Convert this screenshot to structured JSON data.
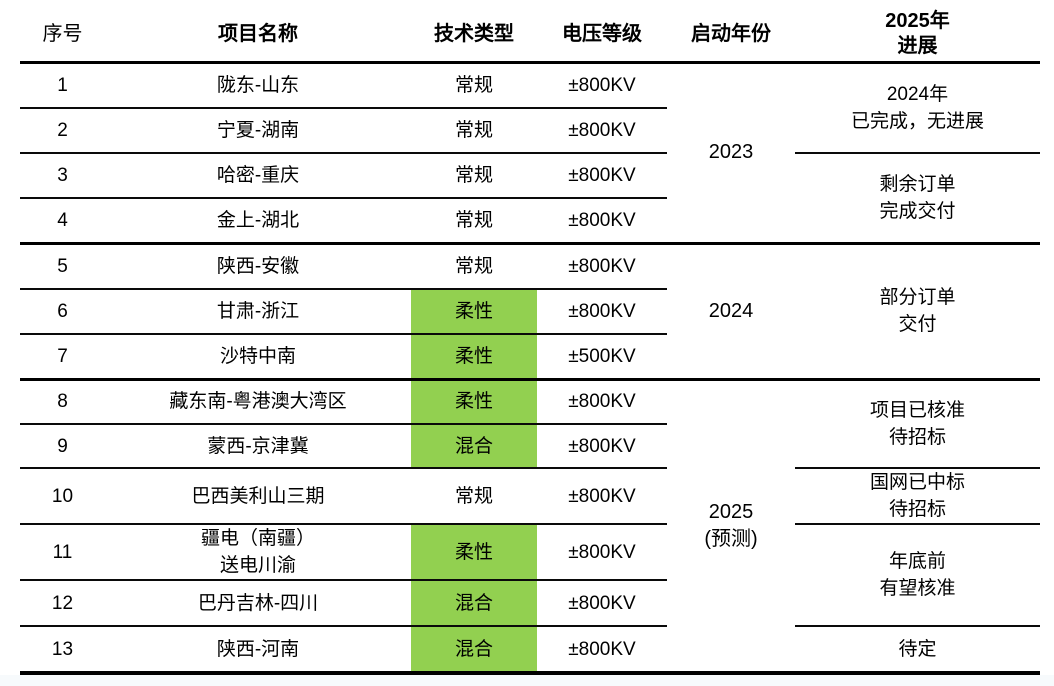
{
  "colors": {
    "highlight_green": "#92d050",
    "line_black": "#000000",
    "footer_strip": "#f7fafc",
    "background": "#ffffff"
  },
  "table": {
    "columns": [
      {
        "label": "序号"
      },
      {
        "label": "项目名称"
      },
      {
        "label": "技术类型"
      },
      {
        "label": "电压等级"
      },
      {
        "label": "启动年份"
      },
      {
        "label": "2025年\n进展"
      }
    ],
    "rows": [
      {
        "no": "1",
        "name": "陇东-山东",
        "tech": "常规",
        "highlight": false,
        "voltage": "±800KV"
      },
      {
        "no": "2",
        "name": "宁夏-湖南",
        "tech": "常规",
        "highlight": false,
        "voltage": "±800KV"
      },
      {
        "no": "3",
        "name": "哈密-重庆",
        "tech": "常规",
        "highlight": false,
        "voltage": "±800KV"
      },
      {
        "no": "4",
        "name": "金上-湖北",
        "tech": "常规",
        "highlight": false,
        "voltage": "±800KV"
      },
      {
        "no": "5",
        "name": "陕西-安徽",
        "tech": "常规",
        "highlight": false,
        "voltage": "±800KV"
      },
      {
        "no": "6",
        "name": "甘肃-浙江",
        "tech": "柔性",
        "highlight": true,
        "voltage": "±800KV"
      },
      {
        "no": "7",
        "name": "沙特中南",
        "tech": "柔性",
        "highlight": true,
        "voltage": "±500KV"
      },
      {
        "no": "8",
        "name": "藏东南-粤港澳大湾区",
        "tech": "柔性",
        "highlight": true,
        "voltage": "±800KV"
      },
      {
        "no": "9",
        "name": "蒙西-京津冀",
        "tech": "混合",
        "highlight": true,
        "voltage": "±800KV"
      },
      {
        "no": "10",
        "name": "巴西美利山三期",
        "tech": "常规",
        "highlight": false,
        "voltage": "±800KV"
      },
      {
        "no": "11",
        "name": "疆电（南疆）\n送电川渝",
        "tech": "柔性",
        "highlight": true,
        "voltage": "±800KV"
      },
      {
        "no": "12",
        "name": "巴丹吉林-四川",
        "tech": "混合",
        "highlight": true,
        "voltage": "±800KV"
      },
      {
        "no": "13",
        "name": "陕西-河南",
        "tech": "混合",
        "highlight": true,
        "voltage": "±800KV"
      }
    ],
    "year_groups": [
      {
        "label": "2023",
        "start": 1,
        "end": 4
      },
      {
        "label": "2024",
        "start": 5,
        "end": 7
      },
      {
        "label": "2025\n(预测)",
        "start": 8,
        "end": 13
      }
    ],
    "progress_groups": [
      {
        "label": "2024年\n已完成，无进展",
        "start": 1,
        "end": 2
      },
      {
        "label": "剩余订单\n完成交付",
        "start": 3,
        "end": 4
      },
      {
        "label": "部分订单\n交付",
        "start": 5,
        "end": 7
      },
      {
        "label": "项目已核准\n待招标",
        "start": 8,
        "end": 9
      },
      {
        "label": "国网已中标\n待招标",
        "start": 10,
        "end": 10
      },
      {
        "label": "年底前\n有望核准",
        "start": 11,
        "end": 12
      },
      {
        "label": "待定",
        "start": 13,
        "end": 13
      }
    ]
  }
}
